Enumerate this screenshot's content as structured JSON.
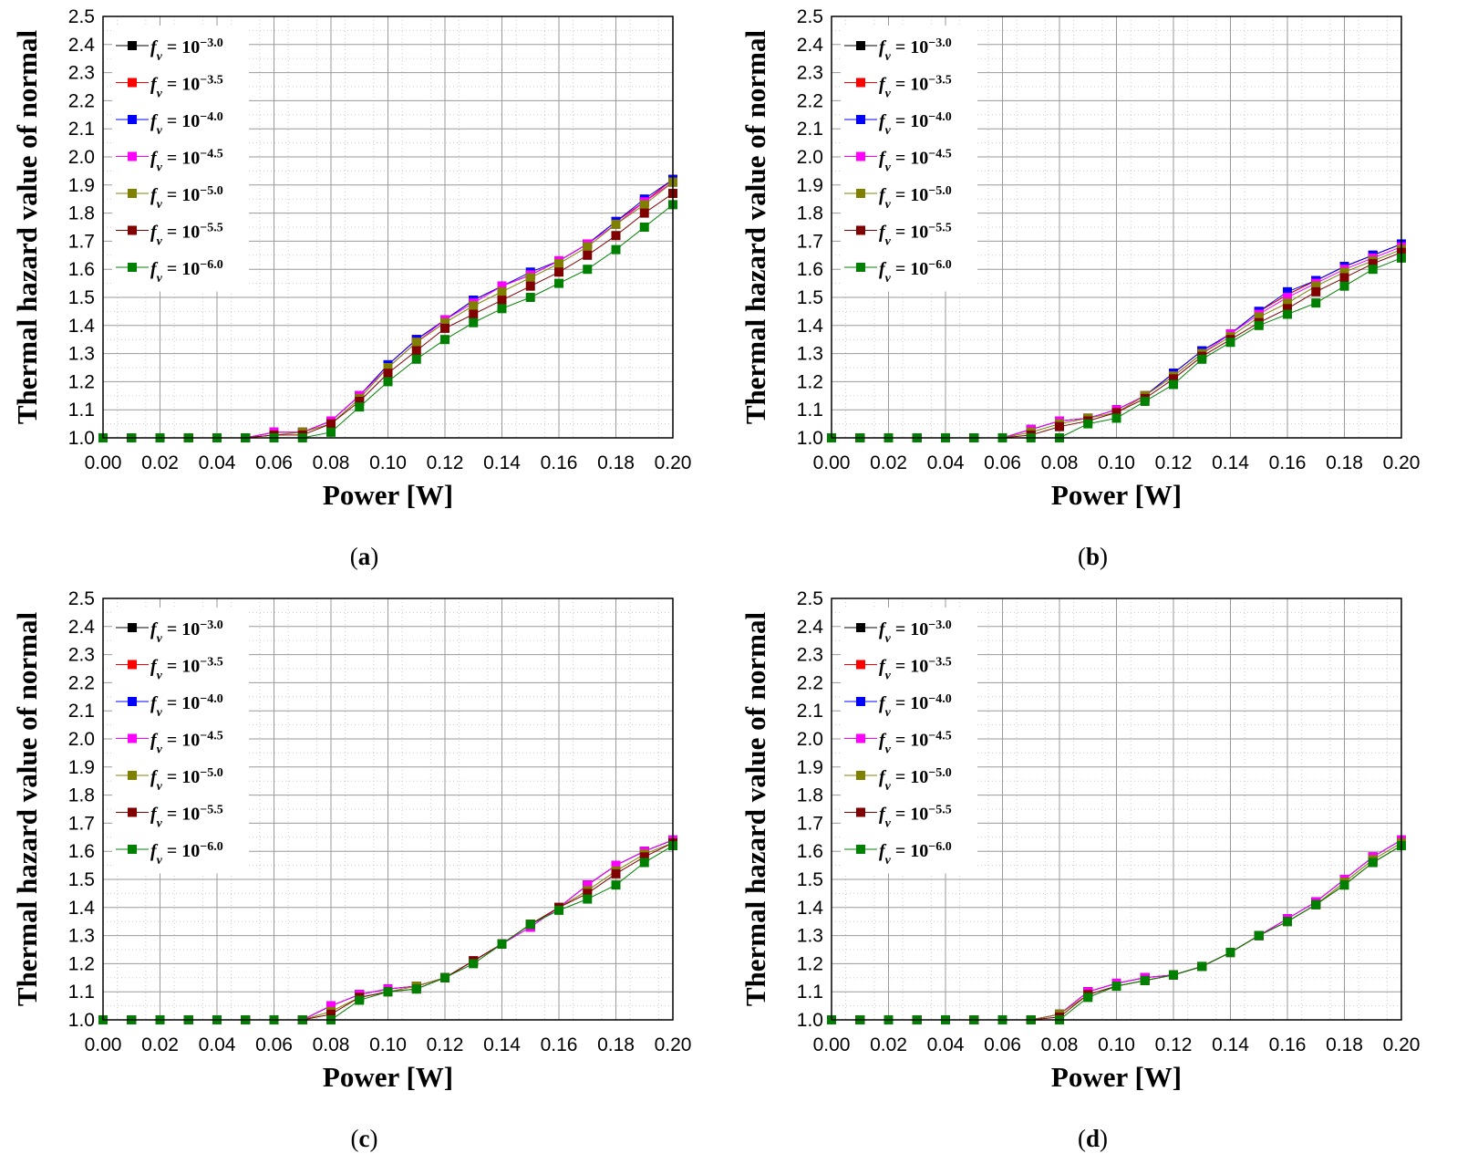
{
  "figure": {
    "colors": {
      "series": [
        "#000000",
        "#ff0000",
        "#0000ff",
        "#ff00ff",
        "#808000",
        "#800000",
        "#008000"
      ],
      "grid": "#9a9a9a",
      "minor_grid": "#cccccc"
    },
    "legend_prefix": "f",
    "legend_subscript": "v",
    "legend_base": " = 10",
    "panel_labels": [
      "a",
      "b",
      "c",
      "d"
    ]
  },
  "chart_data": [
    {
      "id": "a",
      "type": "line",
      "title": "",
      "xlabel": "Power [W]",
      "ylabel": "Thermal hazard value of normal",
      "xlim": [
        0,
        0.2
      ],
      "ylim": [
        1.0,
        2.5
      ],
      "xticks": [
        "0.00",
        "0.02",
        "0.04",
        "0.06",
        "0.08",
        "0.10",
        "0.12",
        "0.14",
        "0.16",
        "0.18",
        "0.20"
      ],
      "yticks": [
        "1.0",
        "1.1",
        "1.2",
        "1.3",
        "1.4",
        "1.5",
        "1.6",
        "1.7",
        "1.8",
        "1.9",
        "2.0",
        "2.1",
        "2.2",
        "2.3",
        "2.4",
        "2.5"
      ],
      "grid": true,
      "legend_position": "top-left",
      "x": [
        0,
        0.01,
        0.02,
        0.03,
        0.04,
        0.05,
        0.06,
        0.07,
        0.08,
        0.09,
        0.1,
        0.11,
        0.12,
        0.13,
        0.14,
        0.15,
        0.16,
        0.17,
        0.18,
        0.19,
        0.2
      ],
      "series": [
        {
          "name": "f_v = 10^-3.0",
          "exponent": "−3.0",
          "values": [
            1,
            1,
            1,
            1,
            1,
            1,
            1.02,
            1.02,
            1.06,
            1.15,
            1.26,
            1.35,
            1.42,
            1.49,
            1.54,
            1.58,
            1.63,
            1.69,
            1.77,
            1.84,
            1.92
          ]
        },
        {
          "name": "f_v = 10^-3.5",
          "exponent": "−3.5",
          "values": [
            1,
            1,
            1,
            1,
            1,
            1,
            1.02,
            1.02,
            1.06,
            1.15,
            1.26,
            1.35,
            1.42,
            1.49,
            1.54,
            1.58,
            1.63,
            1.69,
            1.77,
            1.84,
            1.92
          ]
        },
        {
          "name": "f_v = 10^-4.0",
          "exponent": "−4.0",
          "values": [
            1,
            1,
            1,
            1,
            1,
            1,
            1.02,
            1.02,
            1.06,
            1.15,
            1.26,
            1.35,
            1.42,
            1.49,
            1.54,
            1.59,
            1.63,
            1.69,
            1.77,
            1.85,
            1.92
          ]
        },
        {
          "name": "f_v = 10^-4.5",
          "exponent": "−4.5",
          "values": [
            1,
            1,
            1,
            1,
            1,
            1,
            1.02,
            1.02,
            1.06,
            1.15,
            1.25,
            1.34,
            1.42,
            1.48,
            1.54,
            1.58,
            1.63,
            1.69,
            1.76,
            1.84,
            1.91
          ]
        },
        {
          "name": "f_v = 10^-5.0",
          "exponent": "−5.0",
          "values": [
            1,
            1,
            1,
            1,
            1,
            1,
            1.01,
            1.02,
            1.05,
            1.14,
            1.25,
            1.34,
            1.41,
            1.47,
            1.52,
            1.57,
            1.62,
            1.68,
            1.76,
            1.83,
            1.91
          ]
        },
        {
          "name": "f_v = 10^-5.5",
          "exponent": "−5.5",
          "values": [
            1,
            1,
            1,
            1,
            1,
            1,
            1.01,
            1.01,
            1.05,
            1.13,
            1.23,
            1.31,
            1.39,
            1.44,
            1.49,
            1.54,
            1.59,
            1.65,
            1.72,
            1.8,
            1.87
          ]
        },
        {
          "name": "f_v = 10^-6.0",
          "exponent": "−6.0",
          "values": [
            1,
            1,
            1,
            1,
            1,
            1,
            1.0,
            1.0,
            1.02,
            1.11,
            1.2,
            1.28,
            1.35,
            1.41,
            1.46,
            1.5,
            1.55,
            1.6,
            1.67,
            1.75,
            1.83
          ]
        }
      ]
    },
    {
      "id": "b",
      "type": "line",
      "title": "",
      "xlabel": "Power [W]",
      "ylabel": "Thermal hazard value of normal",
      "xlim": [
        0,
        0.2
      ],
      "ylim": [
        1.0,
        2.5
      ],
      "xticks": [
        "0.00",
        "0.02",
        "0.04",
        "0.06",
        "0.08",
        "0.10",
        "0.12",
        "0.14",
        "0.16",
        "0.18",
        "0.20"
      ],
      "yticks": [
        "1.0",
        "1.1",
        "1.2",
        "1.3",
        "1.4",
        "1.5",
        "1.6",
        "1.7",
        "1.8",
        "1.9",
        "2.0",
        "2.1",
        "2.2",
        "2.3",
        "2.4",
        "2.5"
      ],
      "grid": true,
      "legend_position": "top-left",
      "x": [
        0,
        0.01,
        0.02,
        0.03,
        0.04,
        0.05,
        0.06,
        0.07,
        0.08,
        0.09,
        0.1,
        0.11,
        0.12,
        0.13,
        0.14,
        0.15,
        0.16,
        0.17,
        0.18,
        0.19,
        0.2
      ],
      "series": [
        {
          "name": "f_v = 10^-3.0",
          "exponent": "−3.0",
          "values": [
            1,
            1,
            1,
            1,
            1,
            1,
            1,
            1.03,
            1.06,
            1.07,
            1.1,
            1.15,
            1.23,
            1.31,
            1.37,
            1.45,
            1.51,
            1.56,
            1.61,
            1.65,
            1.69
          ]
        },
        {
          "name": "f_v = 10^-3.5",
          "exponent": "−3.5",
          "values": [
            1,
            1,
            1,
            1,
            1,
            1,
            1,
            1.03,
            1.06,
            1.07,
            1.1,
            1.15,
            1.23,
            1.31,
            1.37,
            1.45,
            1.51,
            1.56,
            1.61,
            1.65,
            1.69
          ]
        },
        {
          "name": "f_v = 10^-4.0",
          "exponent": "−4.0",
          "values": [
            1,
            1,
            1,
            1,
            1,
            1,
            1,
            1.03,
            1.06,
            1.07,
            1.1,
            1.15,
            1.23,
            1.31,
            1.37,
            1.45,
            1.52,
            1.56,
            1.61,
            1.65,
            1.69
          ]
        },
        {
          "name": "f_v = 10^-4.5",
          "exponent": "−4.5",
          "values": [
            1,
            1,
            1,
            1,
            1,
            1,
            1,
            1.03,
            1.06,
            1.07,
            1.1,
            1.15,
            1.22,
            1.3,
            1.37,
            1.44,
            1.5,
            1.55,
            1.6,
            1.64,
            1.68
          ]
        },
        {
          "name": "f_v = 10^-5.0",
          "exponent": "−5.0",
          "values": [
            1,
            1,
            1,
            1,
            1,
            1,
            1,
            1.02,
            1.05,
            1.07,
            1.09,
            1.15,
            1.22,
            1.3,
            1.36,
            1.43,
            1.48,
            1.54,
            1.59,
            1.63,
            1.67
          ]
        },
        {
          "name": "f_v = 10^-5.5",
          "exponent": "−5.5",
          "values": [
            1,
            1,
            1,
            1,
            1,
            1,
            1,
            1.01,
            1.04,
            1.06,
            1.09,
            1.14,
            1.21,
            1.29,
            1.35,
            1.41,
            1.46,
            1.52,
            1.57,
            1.62,
            1.66
          ]
        },
        {
          "name": "f_v = 10^-6.0",
          "exponent": "−6.0",
          "values": [
            1,
            1,
            1,
            1,
            1,
            1,
            1,
            1.0,
            1.0,
            1.05,
            1.07,
            1.13,
            1.19,
            1.28,
            1.34,
            1.4,
            1.44,
            1.48,
            1.54,
            1.6,
            1.64
          ]
        }
      ]
    },
    {
      "id": "c",
      "type": "line",
      "title": "",
      "xlabel": "Power [W]",
      "ylabel": "Thermal hazard value of normal",
      "xlim": [
        0,
        0.2
      ],
      "ylim": [
        1.0,
        2.5
      ],
      "xticks": [
        "0.00",
        "0.02",
        "0.04",
        "0.06",
        "0.08",
        "0.10",
        "0.12",
        "0.14",
        "0.16",
        "0.18",
        "0.20"
      ],
      "yticks": [
        "1.0",
        "1.1",
        "1.2",
        "1.3",
        "1.4",
        "1.5",
        "1.6",
        "1.7",
        "1.8",
        "1.9",
        "2.0",
        "2.1",
        "2.2",
        "2.3",
        "2.4",
        "2.5"
      ],
      "grid": true,
      "legend_position": "top-left",
      "x": [
        0,
        0.01,
        0.02,
        0.03,
        0.04,
        0.05,
        0.06,
        0.07,
        0.08,
        0.09,
        0.1,
        0.11,
        0.12,
        0.13,
        0.14,
        0.15,
        0.16,
        0.17,
        0.18,
        0.19,
        0.2
      ],
      "series": [
        {
          "name": "f_v = 10^-3.0",
          "exponent": "−3.0",
          "values": [
            1,
            1,
            1,
            1,
            1,
            1,
            1,
            1,
            1.05,
            1.09,
            1.11,
            1.12,
            1.15,
            1.21,
            1.27,
            1.34,
            1.4,
            1.48,
            1.55,
            1.6,
            1.64
          ]
        },
        {
          "name": "f_v = 10^-3.5",
          "exponent": "−3.5",
          "values": [
            1,
            1,
            1,
            1,
            1,
            1,
            1,
            1,
            1.05,
            1.09,
            1.11,
            1.12,
            1.15,
            1.21,
            1.27,
            1.34,
            1.4,
            1.48,
            1.55,
            1.6,
            1.64
          ]
        },
        {
          "name": "f_v = 10^-4.0",
          "exponent": "−4.0",
          "values": [
            1,
            1,
            1,
            1,
            1,
            1,
            1,
            1,
            1.05,
            1.09,
            1.11,
            1.12,
            1.15,
            1.21,
            1.27,
            1.33,
            1.4,
            1.48,
            1.55,
            1.6,
            1.64
          ]
        },
        {
          "name": "f_v = 10^-4.5",
          "exponent": "−4.5",
          "values": [
            1,
            1,
            1,
            1,
            1,
            1,
            1,
            1,
            1.05,
            1.09,
            1.11,
            1.12,
            1.15,
            1.21,
            1.27,
            1.33,
            1.4,
            1.48,
            1.55,
            1.6,
            1.64
          ]
        },
        {
          "name": "f_v = 10^-5.0",
          "exponent": "−5.0",
          "values": [
            1,
            1,
            1,
            1,
            1,
            1,
            1,
            1,
            1.03,
            1.08,
            1.1,
            1.12,
            1.15,
            1.21,
            1.27,
            1.34,
            1.4,
            1.46,
            1.53,
            1.59,
            1.63
          ]
        },
        {
          "name": "f_v = 10^-5.5",
          "exponent": "−5.5",
          "values": [
            1,
            1,
            1,
            1,
            1,
            1,
            1,
            1,
            1.02,
            1.08,
            1.1,
            1.11,
            1.15,
            1.21,
            1.27,
            1.34,
            1.4,
            1.45,
            1.52,
            1.58,
            1.63
          ]
        },
        {
          "name": "f_v = 10^-6.0",
          "exponent": "−6.0",
          "values": [
            1,
            1,
            1,
            1,
            1,
            1,
            1,
            1,
            1.0,
            1.07,
            1.1,
            1.11,
            1.15,
            1.2,
            1.27,
            1.34,
            1.39,
            1.43,
            1.48,
            1.56,
            1.62
          ]
        }
      ]
    },
    {
      "id": "d",
      "type": "line",
      "title": "",
      "xlabel": "Power [W]",
      "ylabel": "Thermal hazard value of normal",
      "xlim": [
        0,
        0.2
      ],
      "ylim": [
        1.0,
        2.5
      ],
      "xticks": [
        "0.00",
        "0.02",
        "0.04",
        "0.06",
        "0.08",
        "0.10",
        "0.12",
        "0.14",
        "0.16",
        "0.18",
        "0.20"
      ],
      "yticks": [
        "1.0",
        "1.1",
        "1.2",
        "1.3",
        "1.4",
        "1.5",
        "1.6",
        "1.7",
        "1.8",
        "1.9",
        "2.0",
        "2.1",
        "2.2",
        "2.3",
        "2.4",
        "2.5"
      ],
      "grid": true,
      "legend_position": "top-left",
      "x": [
        0,
        0.01,
        0.02,
        0.03,
        0.04,
        0.05,
        0.06,
        0.07,
        0.08,
        0.09,
        0.1,
        0.11,
        0.12,
        0.13,
        0.14,
        0.15,
        0.16,
        0.17,
        0.18,
        0.19,
        0.2
      ],
      "series": [
        {
          "name": "f_v = 10^-3.0",
          "exponent": "−3.0",
          "values": [
            1,
            1,
            1,
            1,
            1,
            1,
            1,
            1,
            1.02,
            1.1,
            1.13,
            1.15,
            1.16,
            1.19,
            1.24,
            1.3,
            1.36,
            1.42,
            1.5,
            1.58,
            1.64
          ]
        },
        {
          "name": "f_v = 10^-3.5",
          "exponent": "−3.5",
          "values": [
            1,
            1,
            1,
            1,
            1,
            1,
            1,
            1,
            1.02,
            1.1,
            1.13,
            1.15,
            1.16,
            1.19,
            1.24,
            1.3,
            1.36,
            1.42,
            1.5,
            1.58,
            1.64
          ]
        },
        {
          "name": "f_v = 10^-4.0",
          "exponent": "−4.0",
          "values": [
            1,
            1,
            1,
            1,
            1,
            1,
            1,
            1,
            1.02,
            1.1,
            1.13,
            1.15,
            1.16,
            1.19,
            1.24,
            1.3,
            1.36,
            1.42,
            1.5,
            1.58,
            1.64
          ]
        },
        {
          "name": "f_v = 10^-4.5",
          "exponent": "−4.5",
          "values": [
            1,
            1,
            1,
            1,
            1,
            1,
            1,
            1,
            1.02,
            1.1,
            1.13,
            1.15,
            1.16,
            1.19,
            1.24,
            1.3,
            1.36,
            1.42,
            1.5,
            1.58,
            1.64
          ]
        },
        {
          "name": "f_v = 10^-5.0",
          "exponent": "−5.0",
          "values": [
            1,
            1,
            1,
            1,
            1,
            1,
            1,
            1,
            1.02,
            1.09,
            1.12,
            1.14,
            1.16,
            1.19,
            1.24,
            1.3,
            1.35,
            1.41,
            1.49,
            1.57,
            1.63
          ]
        },
        {
          "name": "f_v = 10^-5.5",
          "exponent": "−5.5",
          "values": [
            1,
            1,
            1,
            1,
            1,
            1,
            1,
            1,
            1.01,
            1.09,
            1.12,
            1.14,
            1.16,
            1.19,
            1.24,
            1.3,
            1.35,
            1.41,
            1.48,
            1.56,
            1.62
          ]
        },
        {
          "name": "f_v = 10^-6.0",
          "exponent": "−6.0",
          "values": [
            1,
            1,
            1,
            1,
            1,
            1,
            1,
            1,
            1.0,
            1.08,
            1.12,
            1.14,
            1.16,
            1.19,
            1.24,
            1.3,
            1.35,
            1.41,
            1.48,
            1.56,
            1.62
          ]
        }
      ]
    }
  ]
}
